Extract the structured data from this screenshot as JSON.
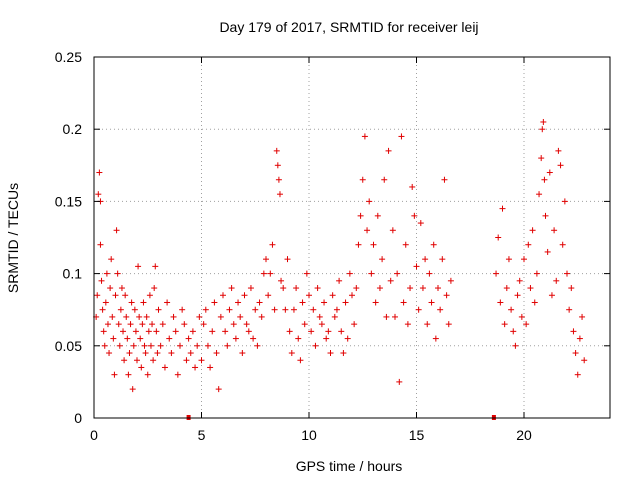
{
  "chart_data": {
    "type": "scatter",
    "title": "Day 179 of 2017, SRMTID for receiver leij",
    "xlabel": "GPS time / hours",
    "ylabel": "SRMTID / TECUs",
    "xlim": [
      0,
      24
    ],
    "ylim": [
      0,
      0.25
    ],
    "xticks": [
      0,
      5,
      10,
      15,
      20
    ],
    "xtick_labels": [
      "0",
      "5",
      "10",
      "15",
      "20"
    ],
    "yticks": [
      0,
      0.05,
      0.1,
      0.15,
      0.2,
      0.25
    ],
    "ytick_labels": [
      "0",
      "0.05",
      "0.1",
      "0.15",
      "0.2",
      "0.25"
    ],
    "grid": true,
    "marker": "+",
    "color": "#e00000",
    "series": [
      {
        "name": "SRMTID",
        "points": [
          [
            0.1,
            0.07
          ],
          [
            0.15,
            0.085
          ],
          [
            0.2,
            0.155
          ],
          [
            0.25,
            0.17
          ],
          [
            0.3,
            0.15
          ],
          [
            0.3,
            0.12
          ],
          [
            0.35,
            0.095
          ],
          [
            0.4,
            0.075
          ],
          [
            0.45,
            0.06
          ],
          [
            0.5,
            0.05
          ],
          [
            0.55,
            0.08
          ],
          [
            0.6,
            0.1
          ],
          [
            0.65,
            0.065
          ],
          [
            0.7,
            0.045
          ],
          [
            0.75,
            0.09
          ],
          [
            0.8,
            0.11
          ],
          [
            0.85,
            0.07
          ],
          [
            0.9,
            0.055
          ],
          [
            0.95,
            0.03
          ],
          [
            1.0,
            0.085
          ],
          [
            1.05,
            0.13
          ],
          [
            1.1,
            0.1
          ],
          [
            1.15,
            0.065
          ],
          [
            1.2,
            0.05
          ],
          [
            1.25,
            0.075
          ],
          [
            1.3,
            0.09
          ],
          [
            1.35,
            0.06
          ],
          [
            1.4,
            0.04
          ],
          [
            1.45,
            0.085
          ],
          [
            1.5,
            0.07
          ],
          [
            1.55,
            0.055
          ],
          [
            1.6,
            0.03
          ],
          [
            1.65,
            0.045
          ],
          [
            1.7,
            0.065
          ],
          [
            1.75,
            0.08
          ],
          [
            1.8,
            0.02
          ],
          [
            1.85,
            0.05
          ],
          [
            1.9,
            0.075
          ],
          [
            1.95,
            0.06
          ],
          [
            2.0,
            0.04
          ],
          [
            2.05,
            0.105
          ],
          [
            2.1,
            0.07
          ],
          [
            2.15,
            0.055
          ],
          [
            2.2,
            0.035
          ],
          [
            2.25,
            0.065
          ],
          [
            2.3,
            0.08
          ],
          [
            2.35,
            0.05
          ],
          [
            2.4,
            0.045
          ],
          [
            2.45,
            0.07
          ],
          [
            2.5,
            0.03
          ],
          [
            2.55,
            0.06
          ],
          [
            2.6,
            0.085
          ],
          [
            2.65,
            0.05
          ],
          [
            2.7,
            0.065
          ],
          [
            2.75,
            0.04
          ],
          [
            2.8,
            0.09
          ],
          [
            2.85,
            0.105
          ],
          [
            2.9,
            0.06
          ],
          [
            2.95,
            0.045
          ],
          [
            3.0,
            0.075
          ],
          [
            3.1,
            0.05
          ],
          [
            3.2,
            0.065
          ],
          [
            3.3,
            0.035
          ],
          [
            3.4,
            0.08
          ],
          [
            3.5,
            0.055
          ],
          [
            3.6,
            0.045
          ],
          [
            3.7,
            0.07
          ],
          [
            3.8,
            0.06
          ],
          [
            3.9,
            0.03
          ],
          [
            4.0,
            0.05
          ],
          [
            4.1,
            0.075
          ],
          [
            4.2,
            0.065
          ],
          [
            4.3,
            0.04
          ],
          [
            4.4,
            0.055
          ],
          [
            4.5,
            0.045
          ],
          [
            4.6,
            0.06
          ],
          [
            4.7,
            0.035
          ],
          [
            4.8,
            0.05
          ],
          [
            4.9,
            0.07
          ],
          [
            5.0,
            0.04
          ],
          [
            5.1,
            0.065
          ],
          [
            5.2,
            0.075
          ],
          [
            5.3,
            0.05
          ],
          [
            5.4,
            0.035
          ],
          [
            5.5,
            0.06
          ],
          [
            5.6,
            0.08
          ],
          [
            5.7,
            0.045
          ],
          [
            5.8,
            0.02
          ],
          [
            5.9,
            0.07
          ],
          [
            6.0,
            0.085
          ],
          [
            6.1,
            0.06
          ],
          [
            6.2,
            0.05
          ],
          [
            6.3,
            0.075
          ],
          [
            6.4,
            0.09
          ],
          [
            6.5,
            0.065
          ],
          [
            6.6,
            0.055
          ],
          [
            6.7,
            0.08
          ],
          [
            6.8,
            0.07
          ],
          [
            6.9,
            0.045
          ],
          [
            7.0,
            0.085
          ],
          [
            7.1,
            0.065
          ],
          [
            7.2,
            0.06
          ],
          [
            7.3,
            0.09
          ],
          [
            7.4,
            0.055
          ],
          [
            7.5,
            0.075
          ],
          [
            7.6,
            0.05
          ],
          [
            7.7,
            0.08
          ],
          [
            7.8,
            0.07
          ],
          [
            7.9,
            0.1
          ],
          [
            8.0,
            0.11
          ],
          [
            8.1,
            0.085
          ],
          [
            8.2,
            0.1
          ],
          [
            8.3,
            0.12
          ],
          [
            8.4,
            0.075
          ],
          [
            8.5,
            0.185
          ],
          [
            8.55,
            0.175
          ],
          [
            8.6,
            0.165
          ],
          [
            8.65,
            0.155
          ],
          [
            8.7,
            0.095
          ],
          [
            8.8,
            0.09
          ],
          [
            8.9,
            0.075
          ],
          [
            9.0,
            0.11
          ],
          [
            9.1,
            0.06
          ],
          [
            9.2,
            0.045
          ],
          [
            9.3,
            0.075
          ],
          [
            9.4,
            0.09
          ],
          [
            9.5,
            0.055
          ],
          [
            9.6,
            0.04
          ],
          [
            9.7,
            0.08
          ],
          [
            9.8,
            0.065
          ],
          [
            9.9,
            0.1
          ],
          [
            10.0,
            0.085
          ],
          [
            10.1,
            0.06
          ],
          [
            10.2,
            0.075
          ],
          [
            10.3,
            0.05
          ],
          [
            10.4,
            0.09
          ],
          [
            10.5,
            0.07
          ],
          [
            10.6,
            0.065
          ],
          [
            10.7,
            0.08
          ],
          [
            10.8,
            0.055
          ],
          [
            10.9,
            0.06
          ],
          [
            11.0,
            0.045
          ],
          [
            11.1,
            0.085
          ],
          [
            11.2,
            0.07
          ],
          [
            11.3,
            0.075
          ],
          [
            11.4,
            0.095
          ],
          [
            11.5,
            0.06
          ],
          [
            11.6,
            0.045
          ],
          [
            11.7,
            0.08
          ],
          [
            11.8,
            0.055
          ],
          [
            11.9,
            0.1
          ],
          [
            12.0,
            0.085
          ],
          [
            12.1,
            0.065
          ],
          [
            12.2,
            0.09
          ],
          [
            12.3,
            0.12
          ],
          [
            12.4,
            0.14
          ],
          [
            12.5,
            0.165
          ],
          [
            12.6,
            0.195
          ],
          [
            12.7,
            0.13
          ],
          [
            12.8,
            0.15
          ],
          [
            12.9,
            0.1
          ],
          [
            13.0,
            0.12
          ],
          [
            13.1,
            0.08
          ],
          [
            13.2,
            0.14
          ],
          [
            13.3,
            0.09
          ],
          [
            13.4,
            0.11
          ],
          [
            13.5,
            0.165
          ],
          [
            13.6,
            0.07
          ],
          [
            13.7,
            0.185
          ],
          [
            13.8,
            0.095
          ],
          [
            13.9,
            0.13
          ],
          [
            14.0,
            0.07
          ],
          [
            14.1,
            0.1
          ],
          [
            14.2,
            0.025
          ],
          [
            14.3,
            0.195
          ],
          [
            14.4,
            0.08
          ],
          [
            14.5,
            0.12
          ],
          [
            14.6,
            0.065
          ],
          [
            14.7,
            0.09
          ],
          [
            14.8,
            0.16
          ],
          [
            14.9,
            0.14
          ],
          [
            15.0,
            0.105
          ],
          [
            15.1,
            0.075
          ],
          [
            15.2,
            0.135
          ],
          [
            15.3,
            0.09
          ],
          [
            15.4,
            0.11
          ],
          [
            15.5,
            0.065
          ],
          [
            15.6,
            0.1
          ],
          [
            15.7,
            0.08
          ],
          [
            15.8,
            0.12
          ],
          [
            15.9,
            0.055
          ],
          [
            16.0,
            0.09
          ],
          [
            16.1,
            0.075
          ],
          [
            16.2,
            0.11
          ],
          [
            16.3,
            0.165
          ],
          [
            16.4,
            0.085
          ],
          [
            16.5,
            0.065
          ],
          [
            16.6,
            0.095
          ],
          [
            18.7,
            0.1
          ],
          [
            18.8,
            0.125
          ],
          [
            18.9,
            0.08
          ],
          [
            19.0,
            0.145
          ],
          [
            19.1,
            0.065
          ],
          [
            19.2,
            0.09
          ],
          [
            19.3,
            0.11
          ],
          [
            19.4,
            0.075
          ],
          [
            19.5,
            0.06
          ],
          [
            19.6,
            0.05
          ],
          [
            19.7,
            0.085
          ],
          [
            19.8,
            0.095
          ],
          [
            19.9,
            0.07
          ],
          [
            20.0,
            0.11
          ],
          [
            20.1,
            0.065
          ],
          [
            20.2,
            0.12
          ],
          [
            20.3,
            0.09
          ],
          [
            20.4,
            0.13
          ],
          [
            20.5,
            0.08
          ],
          [
            20.6,
            0.1
          ],
          [
            20.7,
            0.155
          ],
          [
            20.8,
            0.18
          ],
          [
            20.85,
            0.2
          ],
          [
            20.9,
            0.205
          ],
          [
            20.95,
            0.165
          ],
          [
            21.0,
            0.14
          ],
          [
            21.1,
            0.115
          ],
          [
            21.2,
            0.17
          ],
          [
            21.3,
            0.085
          ],
          [
            21.4,
            0.13
          ],
          [
            21.5,
            0.095
          ],
          [
            21.6,
            0.185
          ],
          [
            21.7,
            0.175
          ],
          [
            21.8,
            0.12
          ],
          [
            21.9,
            0.15
          ],
          [
            22.0,
            0.1
          ],
          [
            22.1,
            0.075
          ],
          [
            22.2,
            0.09
          ],
          [
            22.3,
            0.06
          ],
          [
            22.4,
            0.045
          ],
          [
            22.5,
            0.03
          ],
          [
            22.6,
            0.055
          ],
          [
            22.7,
            0.07
          ],
          [
            22.8,
            0.04
          ]
        ]
      }
    ],
    "axis_markers": [
      4.4,
      18.6
    ]
  }
}
